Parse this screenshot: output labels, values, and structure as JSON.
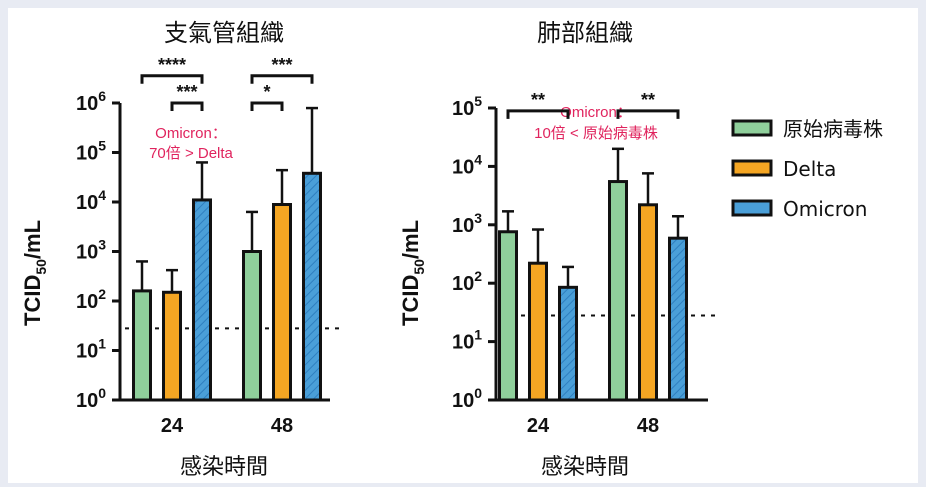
{
  "colors": {
    "original": "#8fcf9b",
    "delta": "#f5a623",
    "omicron": "#4a9fd8",
    "annotation": "#e0245e"
  },
  "legend": [
    {
      "label": "原始病毒株",
      "color": "#8fcf9b"
    },
    {
      "label": "Delta",
      "color": "#f5a623"
    },
    {
      "label": "Omicron",
      "color": "#4a9fd8"
    }
  ],
  "chart_data": [
    {
      "type": "bar",
      "title": "支氣管組織",
      "xlabel": "感染時間",
      "ylabel_main": "TCID",
      "ylabel_sub": "50",
      "ylabel_unit": "/mL",
      "y_scale": "log10",
      "y_tick_exponents": [
        0,
        1,
        2,
        3,
        4,
        5,
        6
      ],
      "ylim_exp": [
        0,
        6
      ],
      "categories": [
        "24",
        "48"
      ],
      "series": [
        {
          "name": "原始病毒株",
          "values": [
            160,
            1000
          ],
          "err_upper": [
            630,
            6300
          ]
        },
        {
          "name": "Delta",
          "values": [
            150,
            8900
          ],
          "err_upper": [
            420,
            44000
          ]
        },
        {
          "name": "Omicron",
          "values": [
            11000,
            38000
          ],
          "err_upper": [
            63000,
            790000
          ]
        }
      ],
      "detection_limit": 28,
      "significance": [
        {
          "label": "****",
          "category": "24",
          "from": 0,
          "to": 2,
          "level_exp": 6.55
        },
        {
          "label": "***",
          "category": "24",
          "from": 1,
          "to": 2,
          "level_exp": 6.0
        },
        {
          "label": "***",
          "category": "48",
          "from": 0,
          "to": 2,
          "level_exp": 6.55
        },
        {
          "label": "*",
          "category": "48",
          "from": 0,
          "to": 1,
          "level_exp": 6.0
        }
      ],
      "annotation": [
        "Omicron：",
        "70倍 > Delta"
      ]
    },
    {
      "type": "bar",
      "title": "肺部組織",
      "xlabel": "感染時間",
      "ylabel_main": "TCID",
      "ylabel_sub": "50",
      "ylabel_unit": "/mL",
      "y_scale": "log10",
      "y_tick_exponents": [
        0,
        1,
        2,
        3,
        4,
        5
      ],
      "ylim_exp": [
        0,
        5
      ],
      "categories": [
        "24",
        "48"
      ],
      "series": [
        {
          "name": "原始病毒株",
          "values": [
            760,
            5500
          ],
          "err_upper": [
            1700,
            20000
          ]
        },
        {
          "name": "Delta",
          "values": [
            220,
            2200
          ],
          "err_upper": [
            830,
            7600
          ]
        },
        {
          "name": "Omicron",
          "values": [
            85,
            590
          ],
          "err_upper": [
            190,
            1400
          ]
        }
      ],
      "detection_limit": 28,
      "significance": [
        {
          "label": "**",
          "category": "24",
          "from": 0,
          "to": 2,
          "level_exp": 4.95
        },
        {
          "label": "**",
          "category": "48",
          "from": 0,
          "to": 2,
          "level_exp": 4.95
        }
      ],
      "annotation": [
        "Omicron：",
        "10倍 < 原始病毒株"
      ]
    }
  ]
}
